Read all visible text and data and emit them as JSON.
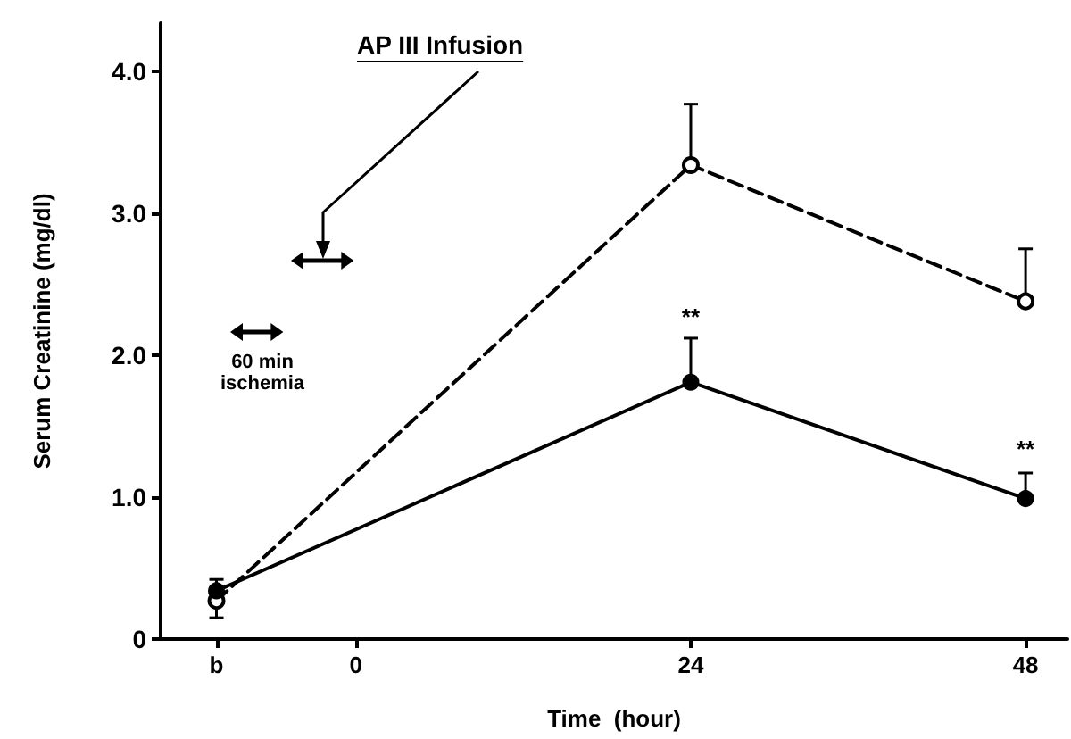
{
  "chart_data": {
    "type": "line",
    "xlabel": "Time  (hour)",
    "ylabel": "Serum Creatinine (mg/dl)",
    "annotations": [
      "AP III Infusion",
      "60 min ischemia",
      "**",
      "**"
    ],
    "x": [
      -10,
      24,
      48
    ],
    "series": [
      {
        "color": "#000000",
        "line_style": "dashed",
        "marker": "circle",
        "values": [
          0.27,
          3.34,
          2.38
        ],
        "errors": [
          [
            0.15,
            0.27
          ],
          [
            3.34,
            3.77
          ],
          [
            2.38,
            2.75
          ]
        ]
      },
      {
        "color": "#000000",
        "line_style": "solid",
        "marker": "circle",
        "values": [
          0.34,
          1.81,
          0.99
        ],
        "errors": [
          [
            0.34,
            0.42
          ],
          [
            1.81,
            2.12
          ],
          [
            0.99,
            1.17
          ]
        ]
      }
    ],
    "xlim": [
      -14,
      51
    ],
    "xticks": [
      {
        "value": -10,
        "label": "b"
      },
      0,
      24,
      48
    ],
    "ylim": [
      0,
      4.34
    ],
    "yticks": [
      0,
      {
        "value": 1,
        "label": "1.0"
      },
      {
        "value": 2,
        "label": "2.0"
      },
      {
        "value": 3,
        "label": "3.0"
      },
      {
        "value": 4,
        "label": "4.0"
      }
    ],
    "grid": false
  }
}
